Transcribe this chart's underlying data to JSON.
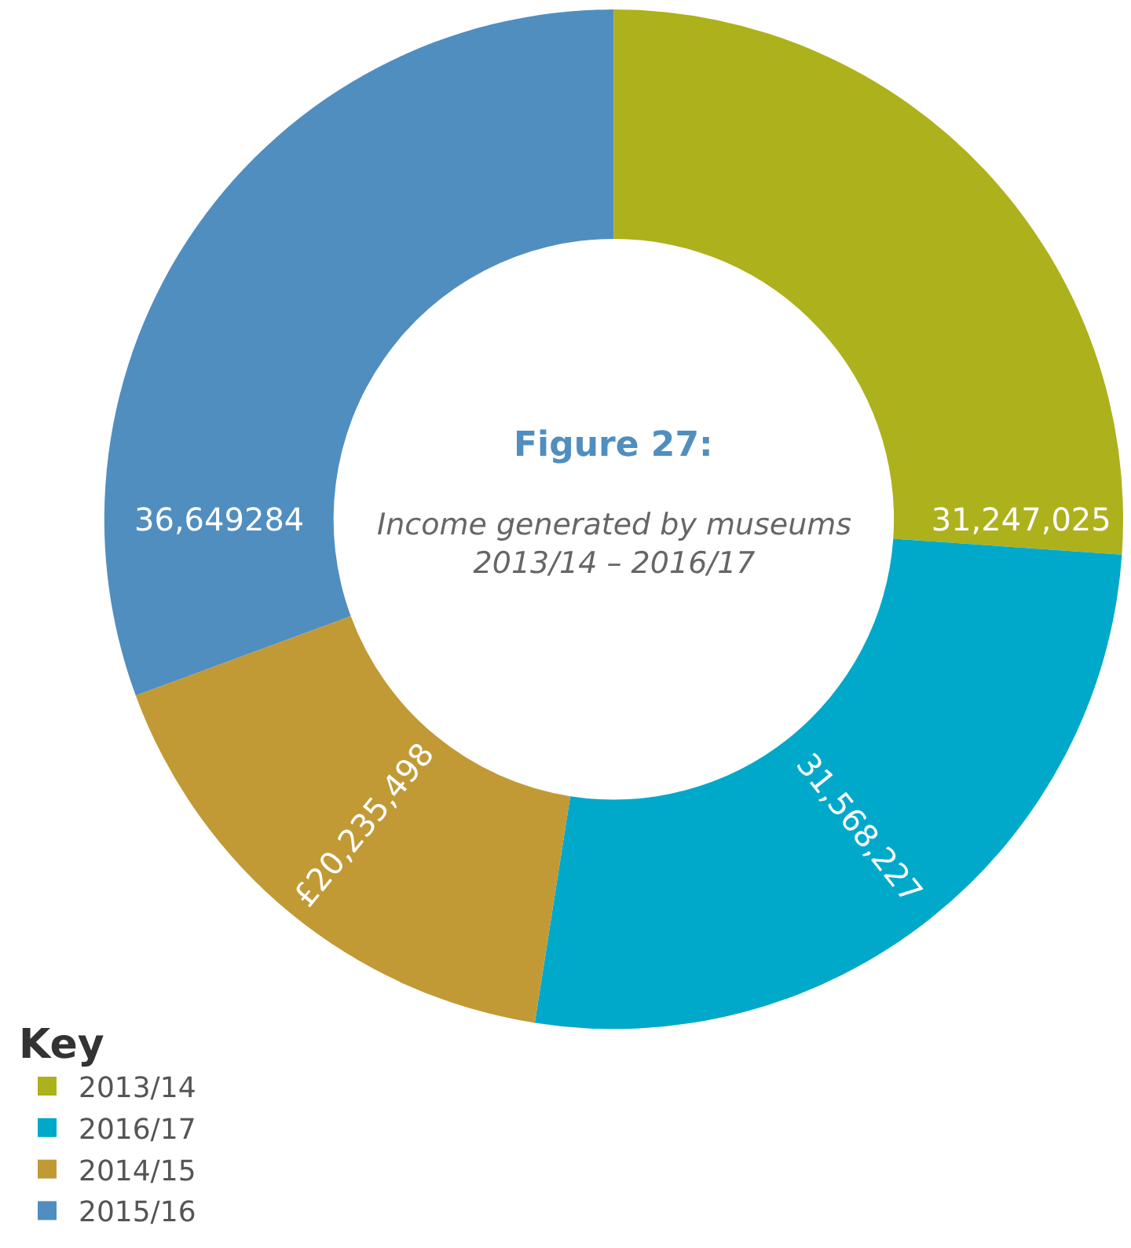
{
  "chart_data": {
    "type": "donut",
    "title": "Figure 27:",
    "subtitle": "Income generated by museums\n2013/14 – 2016/17",
    "legend_title": "Key",
    "legend": "bottom left",
    "categories": [
      "2013/14",
      "2016/17",
      "2014/15",
      "2015/16"
    ],
    "values": [
      31247025,
      31568227,
      20235498,
      36649284
    ],
    "value_labels": [
      "31,247,025",
      "31,568,227",
      "£20,235,498",
      "36,649284"
    ],
    "colors": [
      "#adb11c",
      "#00a9c9",
      "#c19a35",
      "#508ec0"
    ]
  }
}
